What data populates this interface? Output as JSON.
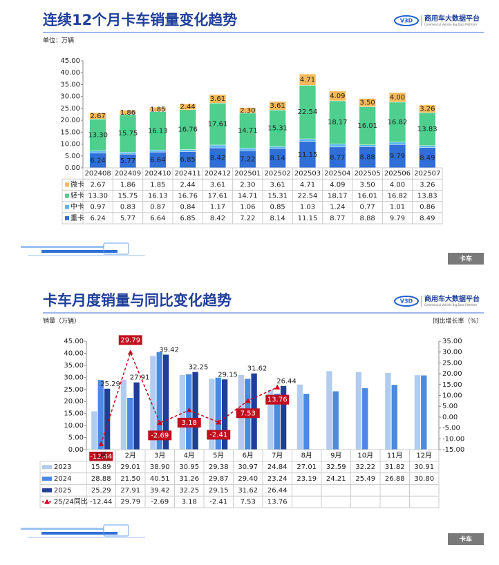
{
  "chart_data": [
    {
      "type": "bar",
      "stacked": true,
      "title": "连续12个月卡车销量变化趋势",
      "ylabel": "单位：万辆",
      "logo": "V3D",
      "brand": "商用车大数据平台",
      "brand_subtitle": "Commercial Vehicle Big Data Platform",
      "tag": "卡车",
      "categories": [
        "202408",
        "202409",
        "202410",
        "202411",
        "202412",
        "202501",
        "202502",
        "202503",
        "202504",
        "202505",
        "202506",
        "202507"
      ],
      "series": [
        {
          "name": "重卡",
          "color": "#2f6fd6",
          "data_labels": true,
          "values": [
            6.24,
            5.77,
            6.64,
            6.85,
            8.42,
            7.22,
            8.14,
            11.15,
            8.77,
            8.88,
            9.79,
            8.49
          ],
          "value_labels": [
            "6.24",
            "5.77",
            "6.64",
            "6.85",
            "8.42",
            "7.22",
            "8.14",
            "11.15",
            "8.77",
            "8.88",
            "9.79",
            "8.49"
          ]
        },
        {
          "name": "中卡",
          "color": "#5ab6f0",
          "data_labels": false,
          "values": [
            0.97,
            0.83,
            0.87,
            0.84,
            1.17,
            1.06,
            0.85,
            1.03,
            1.24,
            0.77,
            1.01,
            0.86
          ],
          "value_labels": [
            "0.97",
            "0.83",
            "0.87",
            "0.84",
            "1.17",
            "1.06",
            "0.85",
            "1.03",
            "1.24",
            "0.77",
            "1.01",
            "0.86"
          ]
        },
        {
          "name": "轻卡",
          "color": "#4ecf8d",
          "data_labels": true,
          "values": [
            13.3,
            15.75,
            16.13,
            16.76,
            17.61,
            14.71,
            15.31,
            22.54,
            18.17,
            16.01,
            16.82,
            13.83
          ],
          "value_labels": [
            "13.30",
            "15.75",
            "16.13",
            "16.76",
            "17.61",
            "14.71",
            "15.31",
            "22.54",
            "18.17",
            "16.01",
            "16.82",
            "13.83"
          ]
        },
        {
          "name": "微卡",
          "color": "#f6b95b",
          "data_labels": true,
          "values": [
            2.67,
            1.86,
            1.85,
            2.44,
            3.61,
            2.3,
            3.61,
            4.71,
            4.09,
            3.5,
            4.0,
            3.26
          ],
          "value_labels": [
            "2.67",
            "1.86",
            "1.85",
            "2.44",
            "3.61",
            "2.30",
            "3.61",
            "4.71",
            "4.09",
            "3.50",
            "4.00",
            "3.26"
          ]
        }
      ],
      "ylim": [
        0,
        45
      ],
      "yticks": [
        {
          "value": 0,
          "label": "0.00"
        },
        {
          "value": 5,
          "label": "5.00"
        },
        {
          "value": 10,
          "label": "10.00"
        },
        {
          "value": 15,
          "label": "15.00"
        },
        {
          "value": 20,
          "label": "20.00"
        },
        {
          "value": 25,
          "label": "25.00"
        },
        {
          "value": 30,
          "label": "30.00"
        },
        {
          "value": 35,
          "label": "35.00"
        },
        {
          "value": 40,
          "label": "40.00"
        },
        {
          "value": 45,
          "label": "45.00"
        }
      ],
      "grid": false,
      "table_reversed": true
    },
    {
      "type": "bar",
      "stacked": false,
      "title": "卡车月度销量与同比变化趋势",
      "ylabel": "销量（万辆）",
      "y2label": "同比增长率（%）",
      "logo": "V3D",
      "brand": "商用车大数据平台",
      "brand_subtitle": "Commercial Vehicle Big Data Platform",
      "tag": "卡车",
      "categories": [
        "1月",
        "2月",
        "3月",
        "4月",
        "5月",
        "6月",
        "7月",
        "8月",
        "9月",
        "10月",
        "11月",
        "12月"
      ],
      "series": [
        {
          "name": "2023",
          "color": "#b2ccef",
          "values": [
            15.89,
            29.01,
            38.9,
            30.95,
            29.38,
            30.97,
            24.84,
            27.01,
            32.59,
            32.22,
            31.82,
            30.91
          ],
          "value_labels": [
            "15.89",
            "29.01",
            "38.90",
            "30.95",
            "29.38",
            "30.97",
            "24.84",
            "27.01",
            "32.59",
            "32.22",
            "31.82",
            "30.91"
          ]
        },
        {
          "name": "2024",
          "color": "#4a8ae2",
          "values": [
            28.88,
            21.5,
            40.51,
            31.26,
            29.87,
            29.4,
            23.24,
            23.19,
            24.21,
            25.49,
            26.88,
            30.8
          ],
          "value_labels": [
            "28.88",
            "21.50",
            "40.51",
            "31.26",
            "29.87",
            "29.40",
            "23.24",
            "23.19",
            "24.21",
            "25.49",
            "26.88",
            "30.80"
          ]
        },
        {
          "name": "2025",
          "color": "#1f3e98",
          "data_labels": true,
          "values": [
            25.29,
            27.91,
            39.42,
            32.25,
            29.15,
            31.62,
            26.44,
            null,
            null,
            null,
            null,
            null
          ]
        },
        {
          "name": "25/24同比",
          "type": "line",
          "axis": "y2",
          "color": "#d0021b",
          "data_labels": true,
          "values": [
            -12.44,
            29.79,
            -2.69,
            3.18,
            -2.41,
            7.53,
            13.76,
            null,
            null,
            null,
            null,
            null
          ]
        }
      ],
      "ylim": [
        0,
        45
      ],
      "yticks": [
        {
          "value": 0,
          "label": "0.00"
        },
        {
          "value": 5,
          "label": "5.00"
        },
        {
          "value": 10,
          "label": "10.00"
        },
        {
          "value": 15,
          "label": "15.00"
        },
        {
          "value": 20,
          "label": "20.00"
        },
        {
          "value": 25,
          "label": "25.00"
        },
        {
          "value": 30,
          "label": "30.00"
        },
        {
          "value": 35,
          "label": "35.00"
        },
        {
          "value": 40,
          "label": "40.00"
        },
        {
          "value": 45,
          "label": "45.00"
        }
      ],
      "y2lim": [
        -15,
        35
      ],
      "y2ticks": [
        {
          "value": -15,
          "label": "-15.00"
        },
        {
          "value": -10,
          "label": "-10.00"
        },
        {
          "value": -5,
          "label": "-5.00"
        },
        {
          "value": 0,
          "label": "0.00"
        },
        {
          "value": 5,
          "label": "5.00"
        },
        {
          "value": 10,
          "label": "10.00"
        },
        {
          "value": 15,
          "label": "15.00"
        },
        {
          "value": 20,
          "label": "20.00"
        },
        {
          "value": 25,
          "label": "25.00"
        },
        {
          "value": 30,
          "label": "30.00"
        },
        {
          "value": 35,
          "label": "35.00"
        }
      ],
      "grid": false,
      "table_reversed": false
    }
  ]
}
